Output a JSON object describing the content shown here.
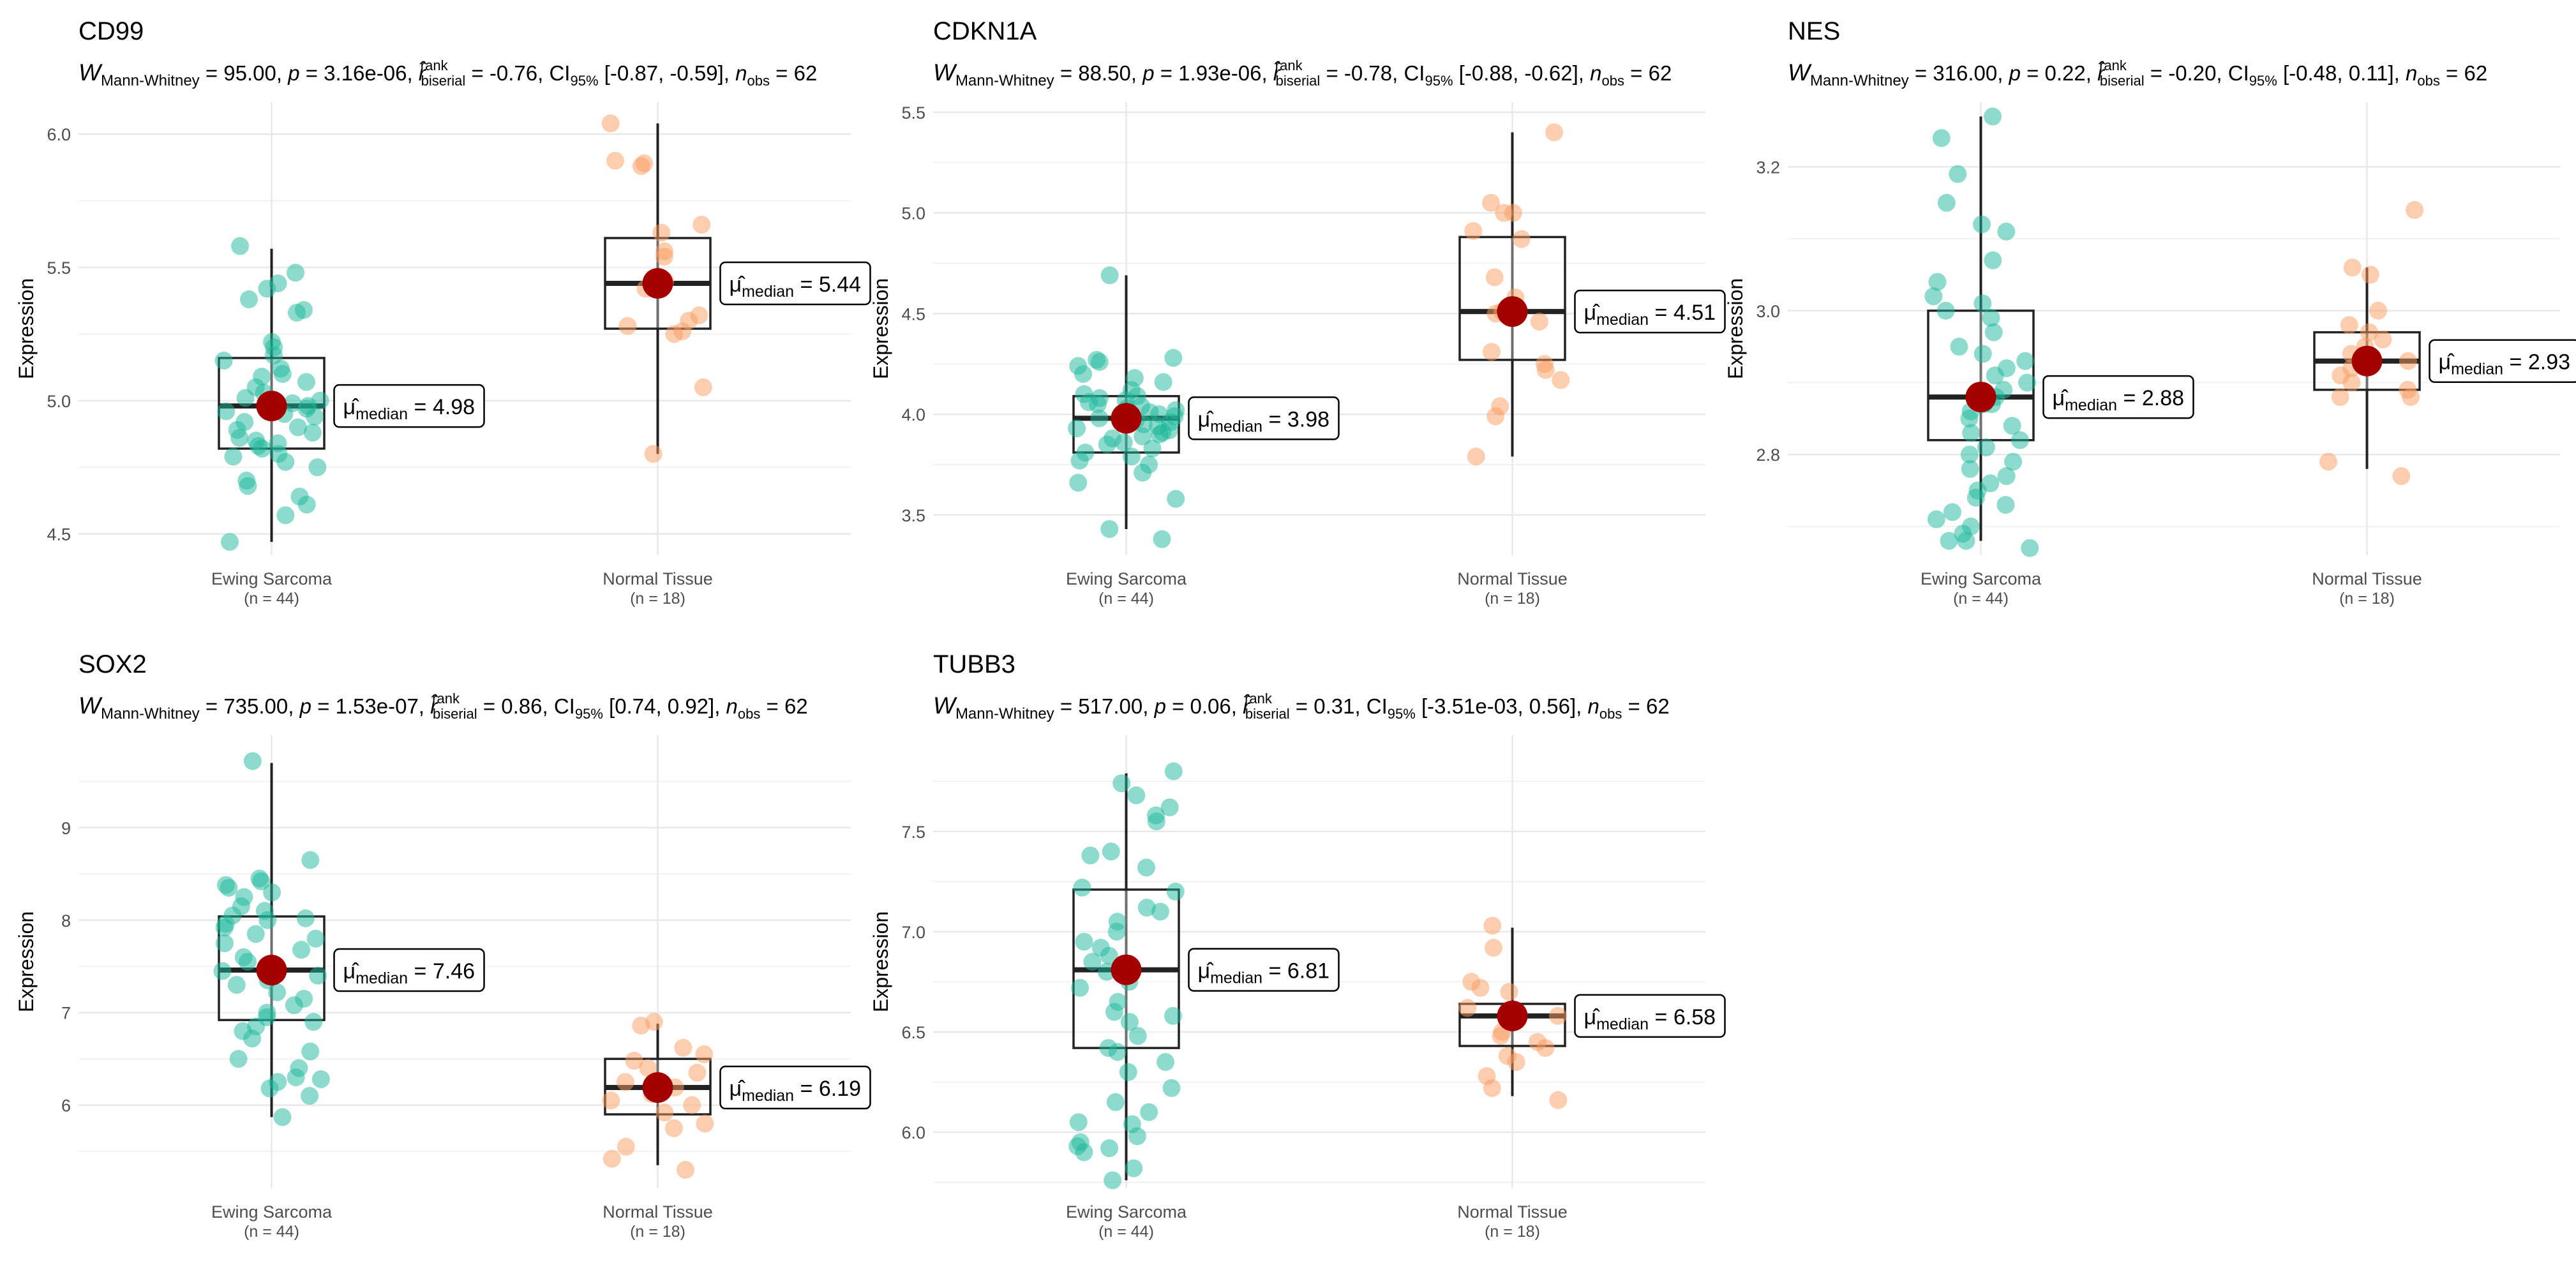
{
  "figure": {
    "type": "box-violin-grid",
    "panels": 5
  },
  "chart_data": [
    {
      "type": "box",
      "title": "CD99",
      "stats": {
        "test": "Mann-Whitney",
        "W": "95.00",
        "p": "3.16e-06",
        "r": "-0.76",
        "ci": "[-0.87, -0.59]",
        "n": "62"
      },
      "ylabel": "Expression",
      "ylim": [
        4.42,
        6.12
      ],
      "yticks": [
        4.5,
        5.0,
        5.5,
        6.0
      ],
      "ytick_labels": [
        "4.5",
        "5.0",
        "5.5",
        "6.0"
      ],
      "categories": [
        "Ewing Sarcoma",
        "Normal Tissue"
      ],
      "category_n": [
        "(n = 44)",
        "(n = 18)"
      ],
      "boxes": [
        {
          "q1": 4.82,
          "median": 4.98,
          "q3": 5.16,
          "whisker_low": 4.47,
          "whisker_high": 5.57,
          "median_label": "4.98",
          "points": [
            5.58,
            5.48,
            5.44,
            5.42,
            5.38,
            5.34,
            5.33,
            5.22,
            5.2,
            5.17,
            5.15,
            5.12,
            5.1,
            5.09,
            5.07,
            5.05,
            5.03,
            5.01,
            5.0,
            4.99,
            4.98,
            4.97,
            4.96,
            4.95,
            4.94,
            4.92,
            4.9,
            4.89,
            4.88,
            4.86,
            4.85,
            4.84,
            4.83,
            4.82,
            4.8,
            4.79,
            4.77,
            4.75,
            4.7,
            4.68,
            4.64,
            4.61,
            4.57,
            4.47
          ]
        },
        {
          "q1": 5.27,
          "median": 5.44,
          "q3": 5.61,
          "whisker_low": 4.8,
          "whisker_high": 6.04,
          "median_label": "5.44",
          "points": [
            6.04,
            5.9,
            5.89,
            5.88,
            5.66,
            5.63,
            5.56,
            5.54,
            5.45,
            5.44,
            5.42,
            5.32,
            5.3,
            5.28,
            5.26,
            5.25,
            5.05,
            4.8
          ]
        }
      ]
    },
    {
      "type": "box",
      "title": "CDKN1A",
      "stats": {
        "test": "Mann-Whitney",
        "W": "88.50",
        "p": "1.93e-06",
        "r": "-0.78",
        "ci": "[-0.88, -0.62]",
        "n": "62"
      },
      "ylabel": "Expression",
      "ylim": [
        3.3,
        5.55
      ],
      "yticks": [
        3.5,
        4.0,
        4.5,
        5.0,
        5.5
      ],
      "ytick_labels": [
        "3.5",
        "4.0",
        "4.5",
        "5.0",
        "5.5"
      ],
      "categories": [
        "Ewing Sarcoma",
        "Normal Tissue"
      ],
      "category_n": [
        "(n = 44)",
        "(n = 18)"
      ],
      "boxes": [
        {
          "q1": 3.81,
          "median": 3.98,
          "q3": 4.09,
          "whisker_low": 3.43,
          "whisker_high": 4.69,
          "median_label": "3.98",
          "points": [
            4.69,
            4.28,
            4.27,
            4.26,
            4.24,
            4.2,
            4.18,
            4.16,
            4.12,
            4.1,
            4.09,
            4.08,
            4.07,
            4.06,
            4.05,
            4.04,
            4.03,
            4.02,
            4.01,
            4.0,
            3.99,
            3.98,
            3.97,
            3.96,
            3.95,
            3.94,
            3.93,
            3.92,
            3.91,
            3.9,
            3.89,
            3.88,
            3.86,
            3.85,
            3.83,
            3.81,
            3.79,
            3.77,
            3.75,
            3.71,
            3.66,
            3.58,
            3.43,
            3.38
          ]
        },
        {
          "q1": 4.27,
          "median": 4.51,
          "q3": 4.88,
          "whisker_low": 3.79,
          "whisker_high": 5.4,
          "median_label": "4.51",
          "points": [
            5.4,
            5.05,
            5.0,
            5.0,
            4.91,
            4.87,
            4.68,
            4.58,
            4.51,
            4.5,
            4.46,
            4.31,
            4.25,
            4.22,
            4.17,
            4.04,
            3.99,
            3.79
          ]
        }
      ]
    },
    {
      "type": "box",
      "title": "NES",
      "stats": {
        "test": "Mann-Whitney",
        "W": "316.00",
        "p": "0.22",
        "r": "-0.20",
        "ci": "[-0.48, 0.11]",
        "n": "62"
      },
      "ylabel": "Expression",
      "ylim": [
        2.66,
        3.29
      ],
      "yticks": [
        2.8,
        3.0,
        3.2
      ],
      "ytick_labels": [
        "2.8",
        "3.0",
        "3.2"
      ],
      "categories": [
        "Ewing Sarcoma",
        "Normal Tissue"
      ],
      "category_n": [
        "(n = 44)",
        "(n = 18)"
      ],
      "boxes": [
        {
          "q1": 2.82,
          "median": 2.88,
          "q3": 3.0,
          "whisker_low": 2.68,
          "whisker_high": 3.27,
          "median_label": "2.88",
          "points": [
            3.27,
            3.24,
            3.19,
            3.15,
            3.12,
            3.11,
            3.07,
            3.04,
            3.02,
            3.01,
            3.0,
            2.99,
            2.97,
            2.95,
            2.94,
            2.93,
            2.92,
            2.91,
            2.9,
            2.89,
            2.88,
            2.87,
            2.87,
            2.86,
            2.85,
            2.84,
            2.83,
            2.82,
            2.81,
            2.8,
            2.79,
            2.78,
            2.77,
            2.76,
            2.75,
            2.74,
            2.73,
            2.72,
            2.71,
            2.7,
            2.69,
            2.68,
            2.68,
            2.67
          ]
        },
        {
          "q1": 2.89,
          "median": 2.93,
          "q3": 2.97,
          "whisker_low": 2.78,
          "whisker_high": 3.06,
          "median_label": "2.93",
          "points": [
            3.14,
            3.06,
            3.05,
            3.0,
            2.98,
            2.97,
            2.96,
            2.95,
            2.94,
            2.93,
            2.92,
            2.91,
            2.9,
            2.89,
            2.88,
            2.88,
            2.79,
            2.77
          ]
        }
      ]
    },
    {
      "type": "box",
      "title": "SOX2",
      "stats": {
        "test": "Mann-Whitney",
        "W": "735.00",
        "p": "1.53e-07",
        "r": "0.86",
        "ci": "[0.74, 0.92]",
        "n": "62"
      },
      "ylabel": "Expression",
      "ylim": [
        5.1,
        10.0
      ],
      "yticks": [
        6,
        7,
        8,
        9
      ],
      "ytick_labels": [
        "6",
        "7",
        "8",
        "9"
      ],
      "categories": [
        "Ewing Sarcoma",
        "Normal Tissue"
      ],
      "category_n": [
        "(n = 44)",
        "(n = 18)"
      ],
      "boxes": [
        {
          "q1": 6.92,
          "median": 7.46,
          "q3": 8.04,
          "whisker_low": 5.87,
          "whisker_high": 9.7,
          "median_label": "7.46",
          "points": [
            9.72,
            8.65,
            8.45,
            8.42,
            8.38,
            8.35,
            8.3,
            8.25,
            8.15,
            8.1,
            8.05,
            8.02,
            8.0,
            7.96,
            7.92,
            7.85,
            7.8,
            7.75,
            7.68,
            7.6,
            7.55,
            7.5,
            7.45,
            7.4,
            7.35,
            7.3,
            7.22,
            7.15,
            7.08,
            7.0,
            6.95,
            6.9,
            6.85,
            6.8,
            6.72,
            6.58,
            6.5,
            6.4,
            6.3,
            6.28,
            6.25,
            6.18,
            6.1,
            5.87
          ]
        },
        {
          "q1": 5.9,
          "median": 6.19,
          "q3": 6.5,
          "whisker_low": 5.35,
          "whisker_high": 6.88,
          "median_label": "6.19",
          "points": [
            6.9,
            6.86,
            6.62,
            6.55,
            6.48,
            6.4,
            6.35,
            6.25,
            6.19,
            6.12,
            6.05,
            6.0,
            5.92,
            5.8,
            5.75,
            5.55,
            5.42,
            5.3
          ]
        }
      ]
    },
    {
      "type": "box",
      "title": "TUBB3",
      "stats": {
        "test": "Mann-Whitney",
        "W": "517.00",
        "p": "0.06",
        "r": "0.31",
        "ci": "[-3.51e-03, 0.56]",
        "n": "62"
      },
      "ylabel": "Expression",
      "ylim": [
        5.72,
        7.98
      ],
      "yticks": [
        6.0,
        6.5,
        7.0,
        7.5
      ],
      "ytick_labels": [
        "6.0",
        "6.5",
        "7.0",
        "7.5"
      ],
      "categories": [
        "Ewing Sarcoma",
        "Normal Tissue"
      ],
      "category_n": [
        "(n = 44)",
        "(n = 18)"
      ],
      "boxes": [
        {
          "q1": 6.42,
          "median": 6.81,
          "q3": 7.21,
          "whisker_low": 5.76,
          "whisker_high": 7.79,
          "median_label": "6.81",
          "points": [
            7.8,
            7.74,
            7.68,
            7.62,
            7.58,
            7.55,
            7.4,
            7.38,
            7.32,
            7.22,
            7.2,
            7.12,
            7.1,
            7.05,
            7.0,
            6.95,
            6.92,
            6.88,
            6.85,
            6.82,
            6.8,
            6.75,
            6.72,
            6.65,
            6.6,
            6.58,
            6.55,
            6.48,
            6.42,
            6.4,
            6.35,
            6.3,
            6.22,
            6.15,
            6.1,
            6.05,
            6.04,
            5.98,
            5.95,
            5.93,
            5.92,
            5.9,
            5.82,
            5.76
          ]
        },
        {
          "q1": 6.43,
          "median": 6.58,
          "q3": 6.64,
          "whisker_low": 6.18,
          "whisker_high": 7.02,
          "median_label": "6.58",
          "points": [
            7.03,
            6.92,
            6.75,
            6.72,
            6.7,
            6.62,
            6.6,
            6.58,
            6.55,
            6.5,
            6.48,
            6.45,
            6.42,
            6.38,
            6.35,
            6.28,
            6.22,
            6.16
          ]
        }
      ]
    }
  ],
  "colors": {
    "group1": "#1cb89a",
    "group2": "#f99b5e",
    "mean": "#a50000",
    "box": "#222222",
    "grid": "#e8e8e8",
    "text": "#000000",
    "tick": "#4d4d4d"
  }
}
